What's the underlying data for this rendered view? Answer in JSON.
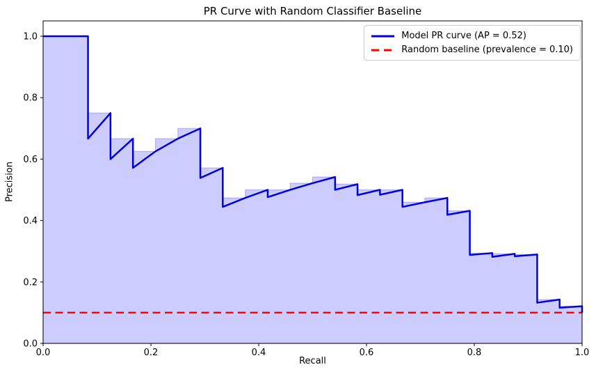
{
  "chart_data": {
    "type": "line",
    "title": "PR Curve with Random Classifier Baseline",
    "xlabel": "Recall",
    "ylabel": "Precision",
    "xlim": [
      0.0,
      1.0
    ],
    "ylim": [
      0.0,
      1.05
    ],
    "xticks": [
      "0.0",
      "0.2",
      "0.4",
      "0.6",
      "0.8",
      "1.0"
    ],
    "yticks": [
      "0.0",
      "0.2",
      "0.4",
      "0.6",
      "0.8",
      "1.0"
    ],
    "grid": false,
    "legend_position": "upper right",
    "series": [
      {
        "name": "Model PR curve (AP = 0.52)",
        "color": "#0000dd",
        "style": "solid",
        "linewidth": 2.5,
        "points": [
          [
            0.0,
            1.0
          ],
          [
            0.0417,
            1.0
          ],
          [
            0.0833,
            1.0
          ],
          [
            0.0833,
            0.6667
          ],
          [
            0.125,
            0.75
          ],
          [
            0.125,
            0.6
          ],
          [
            0.1667,
            0.6667
          ],
          [
            0.1667,
            0.5714
          ],
          [
            0.2083,
            0.625
          ],
          [
            0.25,
            0.6667
          ],
          [
            0.2917,
            0.7
          ],
          [
            0.2917,
            0.5385
          ],
          [
            0.3333,
            0.5714
          ],
          [
            0.3333,
            0.4444
          ],
          [
            0.375,
            0.4737
          ],
          [
            0.4167,
            0.5
          ],
          [
            0.4167,
            0.4762
          ],
          [
            0.4583,
            0.5
          ],
          [
            0.5,
            0.5217
          ],
          [
            0.5417,
            0.5417
          ],
          [
            0.5417,
            0.5
          ],
          [
            0.5833,
            0.5185
          ],
          [
            0.5833,
            0.4828
          ],
          [
            0.625,
            0.5
          ],
          [
            0.625,
            0.4839
          ],
          [
            0.6667,
            0.5
          ],
          [
            0.6667,
            0.4444
          ],
          [
            0.7083,
            0.4595
          ],
          [
            0.75,
            0.4737
          ],
          [
            0.75,
            0.4186
          ],
          [
            0.7917,
            0.4318
          ],
          [
            0.7917,
            0.2879
          ],
          [
            0.8333,
            0.2941
          ],
          [
            0.8333,
            0.2817
          ],
          [
            0.875,
            0.2917
          ],
          [
            0.875,
            0.2838
          ],
          [
            0.9167,
            0.2895
          ],
          [
            0.9167,
            0.1325
          ],
          [
            0.9583,
            0.1429
          ],
          [
            0.9583,
            0.1161
          ],
          [
            1.0,
            0.121
          ],
          [
            1.0,
            0.1
          ]
        ]
      },
      {
        "name": "Random baseline (prevalence = 0.10)",
        "color": "#ff0000",
        "style": "dashed",
        "linewidth": 2.5,
        "points": [
          [
            0.0,
            0.1
          ],
          [
            1.0,
            0.1
          ]
        ]
      }
    ],
    "fill": {
      "color": "#0000ff",
      "opacity": 0.2,
      "edge_opacity": 0.22,
      "top_boundary": [
        [
          0.0,
          1.0
        ],
        [
          0.0833,
          1.0
        ],
        [
          0.0833,
          0.75
        ],
        [
          0.125,
          0.75
        ],
        [
          0.125,
          0.6667
        ],
        [
          0.1667,
          0.6667
        ],
        [
          0.1667,
          0.625
        ],
        [
          0.2083,
          0.625
        ],
        [
          0.2083,
          0.6667
        ],
        [
          0.25,
          0.6667
        ],
        [
          0.25,
          0.7
        ],
        [
          0.2917,
          0.7
        ],
        [
          0.2917,
          0.5714
        ],
        [
          0.3333,
          0.5714
        ],
        [
          0.3333,
          0.4737
        ],
        [
          0.375,
          0.4737
        ],
        [
          0.375,
          0.5
        ],
        [
          0.4583,
          0.5
        ],
        [
          0.4583,
          0.5217
        ],
        [
          0.5,
          0.5217
        ],
        [
          0.5,
          0.5417
        ],
        [
          0.5417,
          0.5417
        ],
        [
          0.5417,
          0.5185
        ],
        [
          0.5833,
          0.5185
        ],
        [
          0.5833,
          0.5
        ],
        [
          0.6667,
          0.5
        ],
        [
          0.6667,
          0.4595
        ],
        [
          0.7083,
          0.4595
        ],
        [
          0.7083,
          0.4737
        ],
        [
          0.75,
          0.4737
        ],
        [
          0.75,
          0.4318
        ],
        [
          0.7917,
          0.4318
        ],
        [
          0.7917,
          0.2941
        ],
        [
          0.8333,
          0.2941
        ],
        [
          0.8333,
          0.2917
        ],
        [
          0.875,
          0.2917
        ],
        [
          0.875,
          0.2895
        ],
        [
          0.9167,
          0.2895
        ],
        [
          0.9167,
          0.1429
        ],
        [
          0.9583,
          0.1429
        ],
        [
          0.9583,
          0.121
        ],
        [
          1.0,
          0.121
        ],
        [
          1.0,
          0.0
        ]
      ]
    },
    "baseline_value": 0.1,
    "ap_value": 0.52,
    "axis_color": "#000000",
    "background_color": "#ffffff"
  }
}
